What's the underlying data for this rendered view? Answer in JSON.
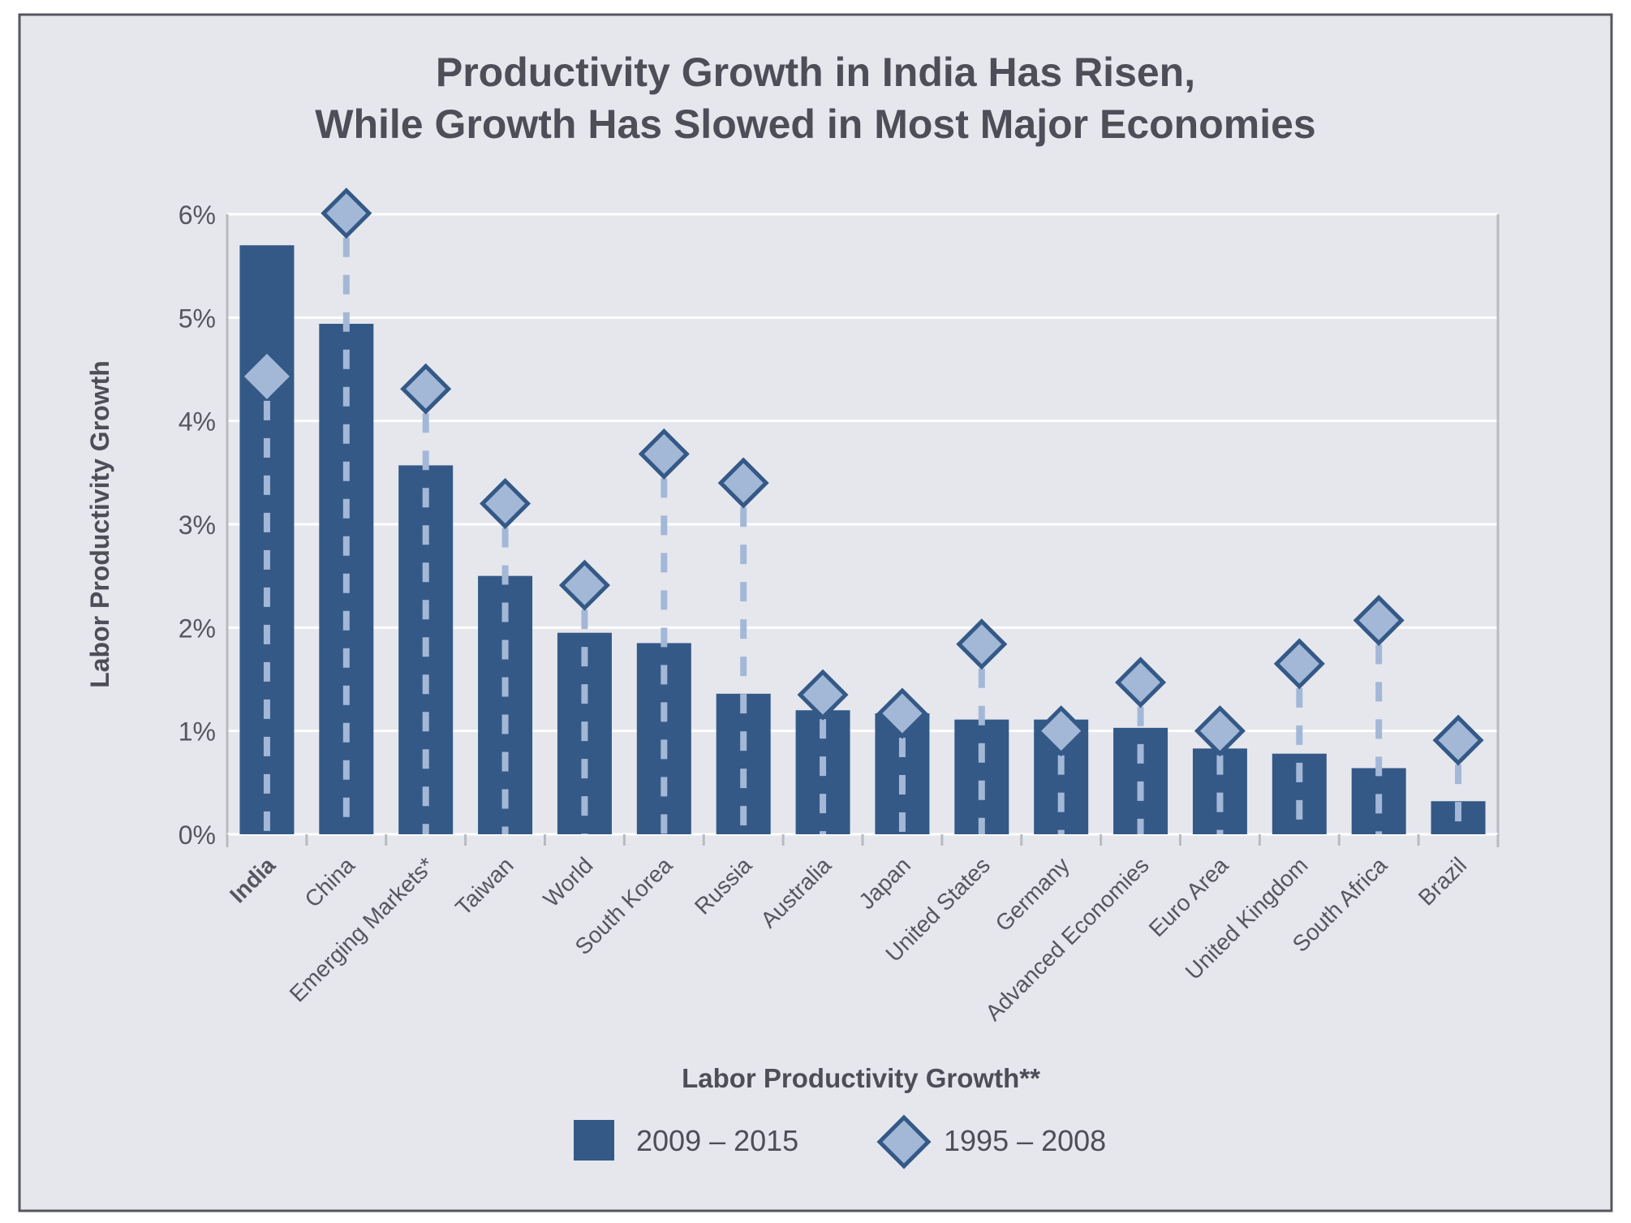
{
  "chart_data": {
    "type": "bar",
    "title_lines": [
      "Productivity Growth in India Has Risen,",
      "While Growth Has Slowed in Most Major Economies"
    ],
    "ylabel": "Labor Productivity Growth",
    "xlabel": "",
    "legend_title": "Labor Productivity Growth**",
    "legend_placement": "bottom",
    "ylim": [
      0,
      6
    ],
    "yticks": [
      "0%",
      "1%",
      "2%",
      "3%",
      "4%",
      "5%",
      "6%"
    ],
    "grid": true,
    "highlight_category": "India",
    "categories": [
      "India",
      "China",
      "Emerging Markets*",
      "Taiwan",
      "World",
      "South Korea",
      "Russia",
      "Australia",
      "Japan",
      "United States",
      "Germany",
      "Advanced Economies",
      "Euro Area",
      "United Kingdom",
      "South Africa",
      "Brazil"
    ],
    "series": [
      {
        "name": "2009 – 2015",
        "mark": "bar",
        "color": "#345987",
        "values": [
          5.7,
          4.94,
          3.57,
          2.5,
          1.95,
          1.85,
          1.36,
          1.2,
          1.17,
          1.11,
          1.11,
          1.03,
          0.83,
          0.78,
          0.64,
          0.32
        ]
      },
      {
        "name": "1995 – 2008",
        "mark": "diamond",
        "color": "#a3b8d6",
        "values": [
          4.43,
          6.01,
          4.31,
          3.2,
          2.41,
          3.68,
          3.4,
          1.35,
          1.17,
          1.84,
          1.0,
          1.47,
          1.0,
          1.65,
          2.07,
          0.91
        ]
      }
    ]
  },
  "colors": {
    "background": "#e6e7ed",
    "frame": "#55565f",
    "text": "#4d4e58",
    "bar": "#345987",
    "diamond_fill": "#a3b8d6",
    "diamond_stroke": "#345987"
  }
}
